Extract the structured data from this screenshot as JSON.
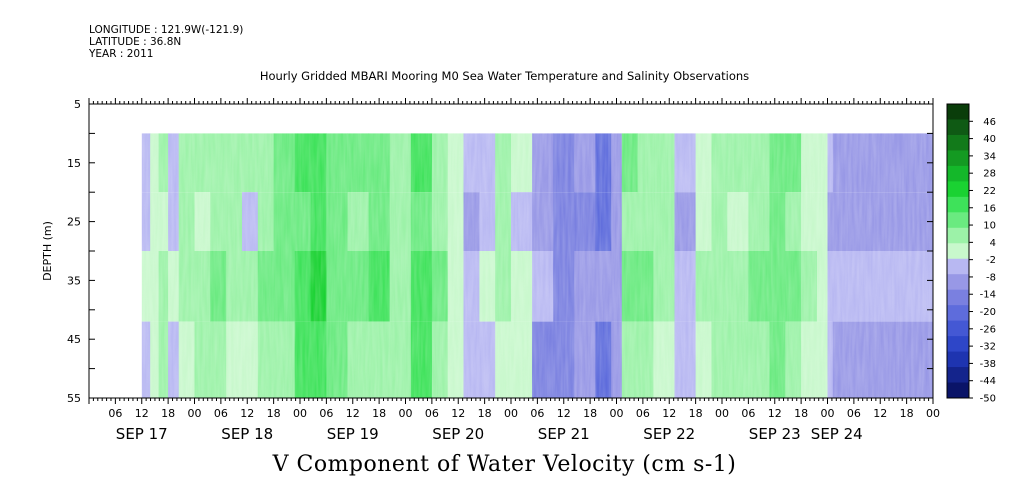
{
  "header": {
    "longitude": "LONGITUDE : 121.9W(-121.9)",
    "latitude": "LATITUDE : 36.8N",
    "year": "YEAR : 2011",
    "title": "Hourly Gridded MBARI Mooring M0 Sea Water Temperature and Salinity Observations"
  },
  "chart_data": {
    "type": "heatmap",
    "title": "Hourly Gridded MBARI Mooring M0 Sea Water Temperature and Salinity Observations",
    "variable_label": "V Component of Water Velocity (cm s-1)",
    "ylabel": "DEPTH (m)",
    "y_ticks": [
      "5",
      "15",
      "25",
      "35",
      "45",
      "55"
    ],
    "ylim": [
      5,
      55
    ],
    "y_inverted": true,
    "data_depth_range": [
      10,
      55
    ],
    "x_hour_labels": [
      "06",
      "12",
      "18",
      "00",
      "06",
      "12",
      "18",
      "00",
      "06",
      "12",
      "18",
      "00",
      "06",
      "12",
      "18",
      "00",
      "06",
      "12",
      "18",
      "00",
      "06",
      "12",
      "18",
      "00",
      "06",
      "12",
      "18",
      "00",
      "06",
      "12",
      "18",
      "00"
    ],
    "x_day_labels": [
      "SEP 17",
      "SEP 18",
      "SEP 19",
      "SEP 20",
      "SEP 21",
      "SEP 22",
      "SEP 23",
      "SEP 24"
    ],
    "data_time_start_hour": 12,
    "x_total_hours": 192,
    "colorbar_labels": [
      "46",
      "40",
      "34",
      "28",
      "22",
      "16",
      "10",
      "4",
      "-2",
      "-8",
      "-14",
      "-20",
      "-26",
      "-32",
      "-38",
      "-44",
      "-50"
    ],
    "colorbar_range": [
      -50,
      52
    ],
    "colorbar_colors": [
      "#0a3d0a",
      "#0f5a14",
      "#127a1a",
      "#149a22",
      "#14b82a",
      "#1ad232",
      "#3ee25a",
      "#6aea80",
      "#9cf2a8",
      "#c8f8cc",
      "#b8b8f2",
      "#9898e6",
      "#7a80e0",
      "#5e6cdc",
      "#4458d4",
      "#2e46c8",
      "#1e34b0",
      "#14248c",
      "#0a1468"
    ],
    "time_profile": [
      {
        "day": 0.5,
        "v": -4
      },
      {
        "day": 0.58,
        "v": 2
      },
      {
        "day": 0.66,
        "v": 4
      },
      {
        "day": 0.75,
        "v": -1
      },
      {
        "day": 0.85,
        "v": 4
      },
      {
        "day": 1.0,
        "v": 6
      },
      {
        "day": 1.15,
        "v": 10
      },
      {
        "day": 1.3,
        "v": 4
      },
      {
        "day": 1.45,
        "v": 2
      },
      {
        "day": 1.6,
        "v": 8
      },
      {
        "day": 1.75,
        "v": 10
      },
      {
        "day": 1.95,
        "v": 14
      },
      {
        "day": 2.1,
        "v": 18
      },
      {
        "day": 2.25,
        "v": 12
      },
      {
        "day": 2.45,
        "v": 8
      },
      {
        "day": 2.65,
        "v": 12
      },
      {
        "day": 2.85,
        "v": 8
      },
      {
        "day": 3.05,
        "v": 14
      },
      {
        "day": 3.25,
        "v": 8
      },
      {
        "day": 3.4,
        "v": 2
      },
      {
        "day": 3.55,
        "v": -4
      },
      {
        "day": 3.7,
        "v": -2
      },
      {
        "day": 3.85,
        "v": 4
      },
      {
        "day": 4.0,
        "v": -2
      },
      {
        "day": 4.2,
        "v": -10
      },
      {
        "day": 4.4,
        "v": -14
      },
      {
        "day": 4.6,
        "v": -12
      },
      {
        "day": 4.8,
        "v": -16
      },
      {
        "day": 4.95,
        "v": -8
      },
      {
        "day": 5.05,
        "v": 8
      },
      {
        "day": 5.2,
        "v": 10
      },
      {
        "day": 5.35,
        "v": 4
      },
      {
        "day": 5.55,
        "v": -4
      },
      {
        "day": 5.75,
        "v": 2
      },
      {
        "day": 5.9,
        "v": 6
      },
      {
        "day": 6.05,
        "v": 4
      },
      {
        "day": 6.25,
        "v": 10
      },
      {
        "day": 6.45,
        "v": 14
      },
      {
        "day": 6.6,
        "v": 8
      },
      {
        "day": 6.75,
        "v": 4
      },
      {
        "day": 6.9,
        "v": 2
      },
      {
        "day": 7.0,
        "v": -6
      },
      {
        "day": 7.05,
        "v": -8
      }
    ]
  }
}
